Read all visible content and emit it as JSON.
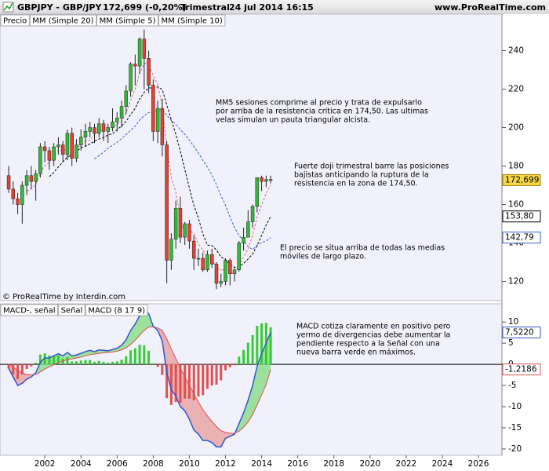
{
  "header": {
    "symbol": "GBPJPY - GBP/JPY",
    "quote": "172,699 (-0,20%)",
    "period": "Trimestral",
    "date": "24 jul 2014 16:15",
    "site": "www.ProRealTime.com"
  },
  "chart_data": [
    {
      "type": "candlestick",
      "legend": "Precio",
      "credit": "© ProRealTime by Interdin.com",
      "x": [
        2000,
        2000.25,
        2000.5,
        2000.75,
        2001,
        2001.25,
        2001.5,
        2001.75,
        2002,
        2002.25,
        2002.5,
        2002.75,
        2003,
        2003.25,
        2003.5,
        2003.75,
        2004,
        2004.25,
        2004.5,
        2004.75,
        2005,
        2005.25,
        2005.5,
        2005.75,
        2006,
        2006.25,
        2006.5,
        2006.75,
        2007,
        2007.25,
        2007.5,
        2007.75,
        2008,
        2008.25,
        2008.5,
        2008.75,
        2009,
        2009.25,
        2009.5,
        2009.75,
        2010,
        2010.25,
        2010.5,
        2010.75,
        2011,
        2011.25,
        2011.5,
        2011.75,
        2012,
        2012.25,
        2012.5,
        2012.75,
        2013,
        2013.25,
        2013.5,
        2013.75,
        2014,
        2014.25,
        2014.5
      ],
      "open": [
        175,
        168,
        163,
        160,
        170,
        175,
        172,
        176,
        190,
        188,
        183,
        190,
        191,
        186,
        197,
        184,
        191,
        195,
        198,
        200,
        197,
        202,
        198,
        200,
        203,
        205,
        211,
        219,
        233,
        232,
        246,
        236,
        222,
        198,
        210,
        191,
        131,
        142,
        158,
        143,
        150,
        141,
        132,
        132,
        126,
        134,
        129,
        119,
        120,
        131,
        124,
        126,
        140,
        143,
        151,
        159,
        174,
        172,
        173
      ],
      "high": [
        180,
        172,
        166,
        172,
        178,
        180,
        178,
        192,
        193,
        190,
        192,
        195,
        193,
        199,
        200,
        194,
        199,
        202,
        203,
        202,
        205,
        204,
        202,
        210,
        208,
        214,
        222,
        234,
        238,
        247,
        251,
        240,
        225,
        214,
        215,
        193,
        145,
        162,
        164,
        151,
        152,
        144,
        137,
        135,
        136,
        137,
        130,
        124,
        132,
        132,
        127,
        141,
        148,
        157,
        160,
        174,
        175,
        175,
        175
      ],
      "low": [
        166,
        160,
        155,
        150,
        165,
        168,
        162,
        174,
        182,
        178,
        180,
        186,
        182,
        183,
        180,
        182,
        188,
        190,
        195,
        192,
        195,
        193,
        192,
        198,
        198,
        200,
        207,
        216,
        222,
        228,
        220,
        218,
        193,
        192,
        185,
        119,
        126,
        137,
        140,
        139,
        137,
        126,
        128,
        125,
        125,
        127,
        116,
        117,
        118,
        118,
        120,
        125,
        136,
        143,
        148,
        156,
        167,
        169,
        171
      ],
      "close": [
        168,
        163,
        160,
        170,
        175,
        172,
        176,
        190,
        188,
        183,
        190,
        191,
        186,
        197,
        184,
        191,
        195,
        198,
        200,
        197,
        202,
        198,
        200,
        203,
        205,
        211,
        219,
        233,
        232,
        246,
        236,
        222,
        198,
        210,
        191,
        131,
        142,
        158,
        143,
        150,
        141,
        132,
        132,
        126,
        134,
        129,
        119,
        120,
        131,
        124,
        126,
        140,
        143,
        151,
        159,
        174,
        172,
        173,
        172.699
      ],
      "close_last_label": "172,699",
      "up_color": "#33bb33",
      "down_color": "#e8402f",
      "tag_color": "#f7d84a",
      "series": [
        {
          "name": "MM (Simple 20)",
          "color": "#3a60d0",
          "dash": true,
          "last_label": "142,79",
          "values": [
            null,
            null,
            null,
            null,
            null,
            null,
            null,
            null,
            null,
            null,
            null,
            null,
            null,
            null,
            null,
            null,
            null,
            null,
            null,
            183.7,
            185.4,
            187.2,
            189.2,
            190.8,
            192.3,
            194.3,
            196.4,
            198.6,
            200.8,
            203.9,
            206.2,
            207.8,
            208.4,
            209,
            209.4,
            206.4,
            203.7,
            201.7,
            198.9,
            196.5,
            193.5,
            190.2,
            186.8,
            182.9,
            179.4,
            175.3,
            170.3,
            164.6,
            159.6,
            153.5,
            148,
            143.9,
            141.1,
            138.2,
            136.6,
            138.7,
            140.2,
            141,
            142.79
          ]
        },
        {
          "name": "MM (Simple 5)",
          "color": "#e07080",
          "dash": true,
          "values": [
            null,
            null,
            null,
            null,
            167.2,
            168,
            170.6,
            176.6,
            180.2,
            181.8,
            185.4,
            188.4,
            187.6,
            189.4,
            189.6,
            189.8,
            190.6,
            193,
            193.6,
            196.2,
            198.4,
            199,
            199.4,
            200,
            201.6,
            203.4,
            207.6,
            214.2,
            220,
            228.2,
            233.2,
            233.8,
            226.8,
            222.4,
            211.4,
            190.4,
            174.4,
            166.4,
            153,
            144.8,
            146.8,
            144.8,
            139.6,
            136.2,
            133,
            130.6,
            128,
            125.6,
            126.6,
            124.6,
            124,
            128.2,
            132.8,
            136.8,
            143.8,
            153.4,
            159.8,
            165.8,
            170.1
          ]
        },
        {
          "name": "MM (Simple 10)",
          "color": "#000000",
          "dash": true,
          "last_label": "153,80",
          "values": [
            null,
            null,
            null,
            null,
            null,
            null,
            null,
            null,
            null,
            174.5,
            176.7,
            179.5,
            182.1,
            184.8,
            185.7,
            187.6,
            189.5,
            190.3,
            191.5,
            192.9,
            194.1,
            194.8,
            196.2,
            196.8,
            198.9,
            200.9,
            203.3,
            206.8,
            210,
            214.9,
            218.3,
            220.7,
            220.5,
            221.2,
            219.8,
            211.8,
            204.1,
            196.6,
            187.7,
            178.1,
            168.6,
            159.6,
            153,
            144.6,
            138.9,
            138.7,
            136.4,
            132.6,
            131.4,
            128.8,
            127.3,
            128.1,
            129.2,
            131.7,
            134.2,
            138.7,
            144,
            149.3,
            153.8
          ]
        }
      ],
      "xlim": [
        1999.52,
        2027.3
      ],
      "ylim": [
        110,
        259
      ],
      "yticks": [
        120,
        140,
        160,
        180,
        200,
        220,
        240
      ],
      "annotations": [
        [
          "MM5 sesiones comprime al precio y trata de expulsarlo",
          "por arriba de la resistencia crítica en 174,50. Las ultimas",
          "velas simulan un pauta triangular alcista."
        ],
        [
          "Fuerte doji trimestral barre las posiciones",
          "bajistas anticipando la ruptura de la",
          "resistencia en la zona de 174,50."
        ],
        [
          "El precio se situa arriba de todas las medias",
          "móviles de largo plazo."
        ]
      ]
    },
    {
      "type": "macd",
      "series": [
        {
          "name": "MACD-, señal",
          "color": "#33cc33",
          "negative_color": "#e05050",
          "values": [
            -1,
            -2.4,
            -3.5,
            -2.4,
            -1.1,
            -0.5,
            0.4,
            2.3,
            2.6,
            2.1,
            2.1,
            2.1,
            1.3,
            1.7,
            0.7,
            0.7,
            0.9,
            1,
            1,
            0.6,
            0.8,
            0.6,
            0.4,
            0.6,
            0.7,
            1.1,
            1.9,
            3.3,
            3.8,
            4.6,
            4.5,
            3.2,
            0.2,
            -0.6,
            -2.5,
            -8,
            -9.6,
            -8.9,
            -9.1,
            -8.1,
            -8.1,
            -8.5,
            -7.6,
            -7.3,
            -5.8,
            -5,
            -4.8,
            -3.8,
            -1.4,
            -0.7,
            -0.2,
            1.8,
            3.4,
            5.1,
            6.9,
            9.1,
            9.7,
            9.8,
            8.7406
          ]
        },
        {
          "name": "Señal",
          "color": "#e05050",
          "last_label": "-1,2186",
          "values": [
            0,
            -0.6,
            -1.5,
            -2.1,
            -2.4,
            -2.5,
            -2.4,
            -1.8,
            -1.1,
            -0.6,
            -0.1,
            0.4,
            0.7,
            1.1,
            1.3,
            1.5,
            1.7,
            2,
            2.3,
            2.4,
            2.6,
            2.7,
            2.8,
            2.9,
            3.1,
            3.4,
            3.9,
            4.7,
            5.7,
            6.9,
            8,
            8.8,
            8.8,
            8.6,
            8,
            6,
            3.6,
            1.4,
            -0.9,
            -2.9,
            -4.9,
            -7,
            -8.9,
            -10.7,
            -12.2,
            -13.5,
            -14.7,
            -15.7,
            -16.1,
            -16.3,
            -16.3,
            -15.8,
            -14.9,
            -13.6,
            -11.9,
            -9.6,
            -7.2,
            -4.8,
            -1.2186
          ]
        },
        {
          "name": "MACD (8 17 9)",
          "color": "#3355cc",
          "last_label": "7,5220",
          "values": [
            -1,
            -3,
            -5,
            -4.5,
            -3.5,
            -3,
            -2,
            0.5,
            1.5,
            1.5,
            2,
            2.5,
            2,
            2.8,
            2,
            2.2,
            2.6,
            3,
            3.3,
            3,
            3.4,
            3.3,
            3.2,
            3.5,
            3.8,
            4.5,
            5.8,
            8,
            9.5,
            11.5,
            12.5,
            12,
            9,
            8,
            5.5,
            -2,
            -6,
            -7.5,
            -10,
            -11,
            -13,
            -15.5,
            -16.5,
            -18,
            -18,
            -18.5,
            -19.5,
            -19.5,
            -17.5,
            -17,
            -16.5,
            -14,
            -11.5,
            -8.5,
            -5,
            -0.5,
            2.5,
            5,
            7.522
          ]
        }
      ],
      "ylim": [
        -21.5,
        14.3
      ],
      "yticks": [
        -20,
        -15,
        -10,
        -5,
        0,
        5,
        10
      ],
      "xticks": [
        2002,
        2004,
        2006,
        2008,
        2010,
        2012,
        2014,
        2016,
        2018,
        2020,
        2022,
        2024,
        2026
      ],
      "annotations": [
        [
          "MACD cotiza claramente en positivo pero",
          "yermo de divergencias debe aumentar la",
          "pendiente respecto a la Señal con una",
          "nueva barra verde en máximos."
        ]
      ]
    }
  ]
}
